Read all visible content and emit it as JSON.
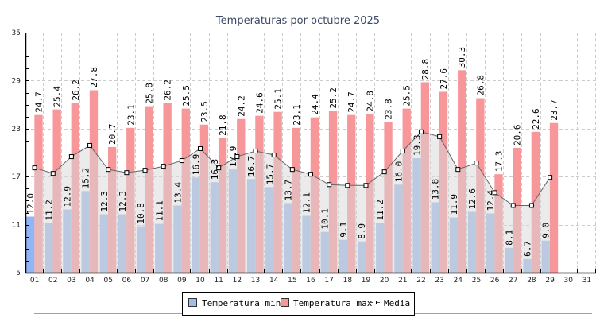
{
  "chart_data": {
    "type": "bar",
    "title": "Temperaturas por octubre 2025",
    "xlabel": "",
    "ylabel": "",
    "ylim": [
      5,
      35
    ],
    "yticks": [
      5,
      11,
      17,
      23,
      29,
      35
    ],
    "grid": true,
    "legend_position": "bottom-center",
    "categories": [
      "01",
      "02",
      "03",
      "04",
      "05",
      "06",
      "07",
      "08",
      "09",
      "10",
      "11",
      "12",
      "13",
      "14",
      "15",
      "16",
      "17",
      "18",
      "19",
      "20",
      "21",
      "22",
      "23",
      "24",
      "25",
      "26",
      "27",
      "28",
      "29",
      "30",
      "31"
    ],
    "series": [
      {
        "name": "Temperatura min",
        "kind": "bar",
        "color": "#a0bcea",
        "values": [
          12.0,
          11.2,
          12.9,
          15.2,
          12.3,
          12.3,
          10.8,
          11.1,
          13.4,
          16.9,
          16.3,
          17.9,
          16.7,
          15.7,
          13.7,
          12.1,
          10.1,
          9.1,
          8.9,
          11.2,
          16.0,
          19.3,
          13.8,
          11.9,
          12.6,
          12.4,
          8.1,
          6.7,
          9.0,
          null,
          null
        ],
        "labels": [
          "12.0",
          "11.2",
          "12.9",
          "15.2",
          "12.3",
          "12.3",
          "10.8",
          "11.1",
          "13.4",
          "16.9",
          "16.3",
          "17.9",
          "16.7",
          "15.7",
          "13.7",
          "12.1",
          "10.1",
          "9.1",
          "8.9",
          "11.2",
          "16.0",
          "19.3",
          "13.8",
          "11.9",
          "12.6",
          "12.4",
          "8.1",
          "6.7",
          "9.0",
          "",
          ""
        ]
      },
      {
        "name": "Temperatura max",
        "kind": "bar",
        "color": "#f7979a",
        "values": [
          24.7,
          25.4,
          26.2,
          27.8,
          20.7,
          23.1,
          25.8,
          26.2,
          25.5,
          23.5,
          21.8,
          24.2,
          24.6,
          25.1,
          23.1,
          24.4,
          25.2,
          24.7,
          24.8,
          23.8,
          25.5,
          28.8,
          27.6,
          30.3,
          26.8,
          17.3,
          20.6,
          22.6,
          23.7,
          null,
          null
        ],
        "labels": [
          "24.7",
          "25.4",
          "26.2",
          "27.8",
          "20.7",
          "23.1",
          "25.8",
          "26.2",
          "25.5",
          "23.5",
          "21.8",
          "24.2",
          "24.6",
          "25.1",
          "23.1",
          "24.4",
          "25.2",
          "24.7",
          "24.8",
          "23.8",
          "25.5",
          "28.8",
          "27.6",
          "30.3",
          "26.8",
          "17.3",
          "20.6",
          "22.6",
          "23.7",
          "",
          ""
        ]
      },
      {
        "name": "Media",
        "kind": "line-area",
        "color": "#555555",
        "values": [
          18.1,
          17.4,
          19.5,
          20.9,
          17.9,
          17.5,
          17.8,
          18.3,
          19.0,
          20.5,
          18.1,
          19.5,
          20.2,
          19.7,
          17.9,
          17.3,
          16.0,
          15.9,
          15.9,
          17.6,
          20.2,
          22.6,
          22.0,
          17.9,
          18.7,
          15.0,
          13.4,
          13.4,
          16.9,
          null,
          null
        ]
      }
    ]
  },
  "legend": {
    "items": [
      {
        "label": "Temperatura min",
        "color": "#a0bcea",
        "marker": "square"
      },
      {
        "label": "Temperatura max",
        "color": "#f7979a",
        "marker": "square"
      },
      {
        "label": "Media",
        "color": "#555555",
        "marker": "line-square"
      }
    ]
  }
}
